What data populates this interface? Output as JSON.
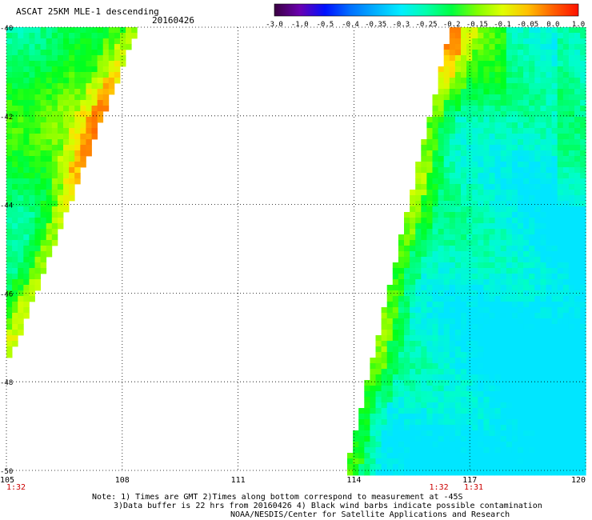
{
  "header": {
    "title": "ASCAT 25KM MLE-1 descending",
    "date": "20160426"
  },
  "colorbar": {
    "colors": [
      "#3a0040",
      "#6a00b0",
      "#0010ff",
      "#0070ff",
      "#00b0ff",
      "#00eeff",
      "#00ffaa",
      "#00ff40",
      "#80ff00",
      "#e0ff00",
      "#ffc000",
      "#ff6000",
      "#ff1000"
    ],
    "tick_labels": [
      "-3.0",
      "-1.0",
      "-0.5",
      "-0.4",
      "-0.35",
      "-0.3",
      "-0.25",
      "-0.2",
      "-0.15",
      "-0.1",
      "-0.05",
      "0.0",
      "1.0"
    ]
  },
  "chart_data": {
    "type": "heatmap",
    "title": "ASCAT 25KM MLE-1 descending",
    "xlim": [
      105,
      120
    ],
    "ylim": [
      -50,
      -40
    ],
    "x_ticks": [
      "105",
      "108",
      "111",
      "114",
      "117",
      "120"
    ],
    "y_ticks": [
      "-40",
      "-42",
      "-44",
      "-46",
      "-48",
      "-50"
    ],
    "grid": true,
    "swaths": [
      {
        "lon_at_lat_-40": [
          105,
          108.4
        ],
        "lon_at_lat_-47.5": [
          105,
          105.1
        ],
        "value_range": [
          -0.3,
          0.0
        ]
      },
      {
        "lon_at_lat_-40": [
          116.5,
          120
        ],
        "lon_at_lat_-50": [
          113.8,
          120
        ],
        "value_range": [
          -0.3,
          0.0
        ]
      }
    ],
    "time_labels": [
      {
        "text": "1:32",
        "lon": 105
      },
      {
        "text": "1:32",
        "lon": 116.2
      },
      {
        "text": "1:31",
        "lon": 117.1
      }
    ]
  },
  "notes": {
    "line1": "Note: 1) Times are GMT 2)Times along bottom correspond to measurement at -45S",
    "line2": "3)Data buffer is 22 hrs from 20160426 4) Black wind barbs indicate possible contamination",
    "line3": "NOAA/NESDIS/Center for Satellite Applications and Research"
  }
}
